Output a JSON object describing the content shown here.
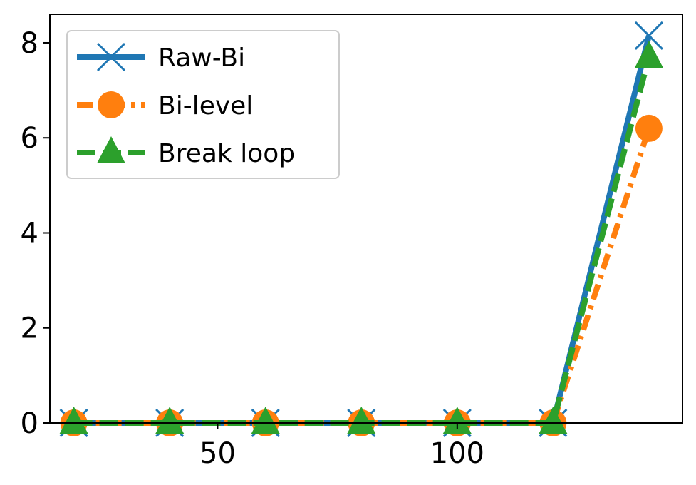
{
  "chart_data": {
    "type": "line",
    "title": "",
    "xlabel": "",
    "ylabel": "",
    "xlim": [
      15,
      147
    ],
    "ylim": [
      0,
      8.6
    ],
    "x": [
      20,
      40,
      60,
      80,
      100,
      120,
      140
    ],
    "xticks": [
      50,
      100
    ],
    "yticks": [
      0,
      2,
      4,
      6,
      8
    ],
    "grid": false,
    "legend_position": "top-left",
    "series": [
      {
        "name": "Raw-Bi",
        "values": [
          0,
          0,
          0,
          0,
          0,
          0,
          8.15
        ],
        "color": "#1f77b4",
        "marker": "x",
        "linestyle": "solid"
      },
      {
        "name": "Bi-level",
        "values": [
          0,
          0,
          0,
          0,
          0,
          0,
          6.2
        ],
        "color": "#ff7f0e",
        "marker": "circle",
        "linestyle": "dashdot"
      },
      {
        "name": "Break loop",
        "values": [
          0,
          0,
          0,
          0,
          0,
          0,
          7.7
        ],
        "color": "#2ca02c",
        "marker": "triangle",
        "linestyle": "dashed"
      }
    ]
  }
}
